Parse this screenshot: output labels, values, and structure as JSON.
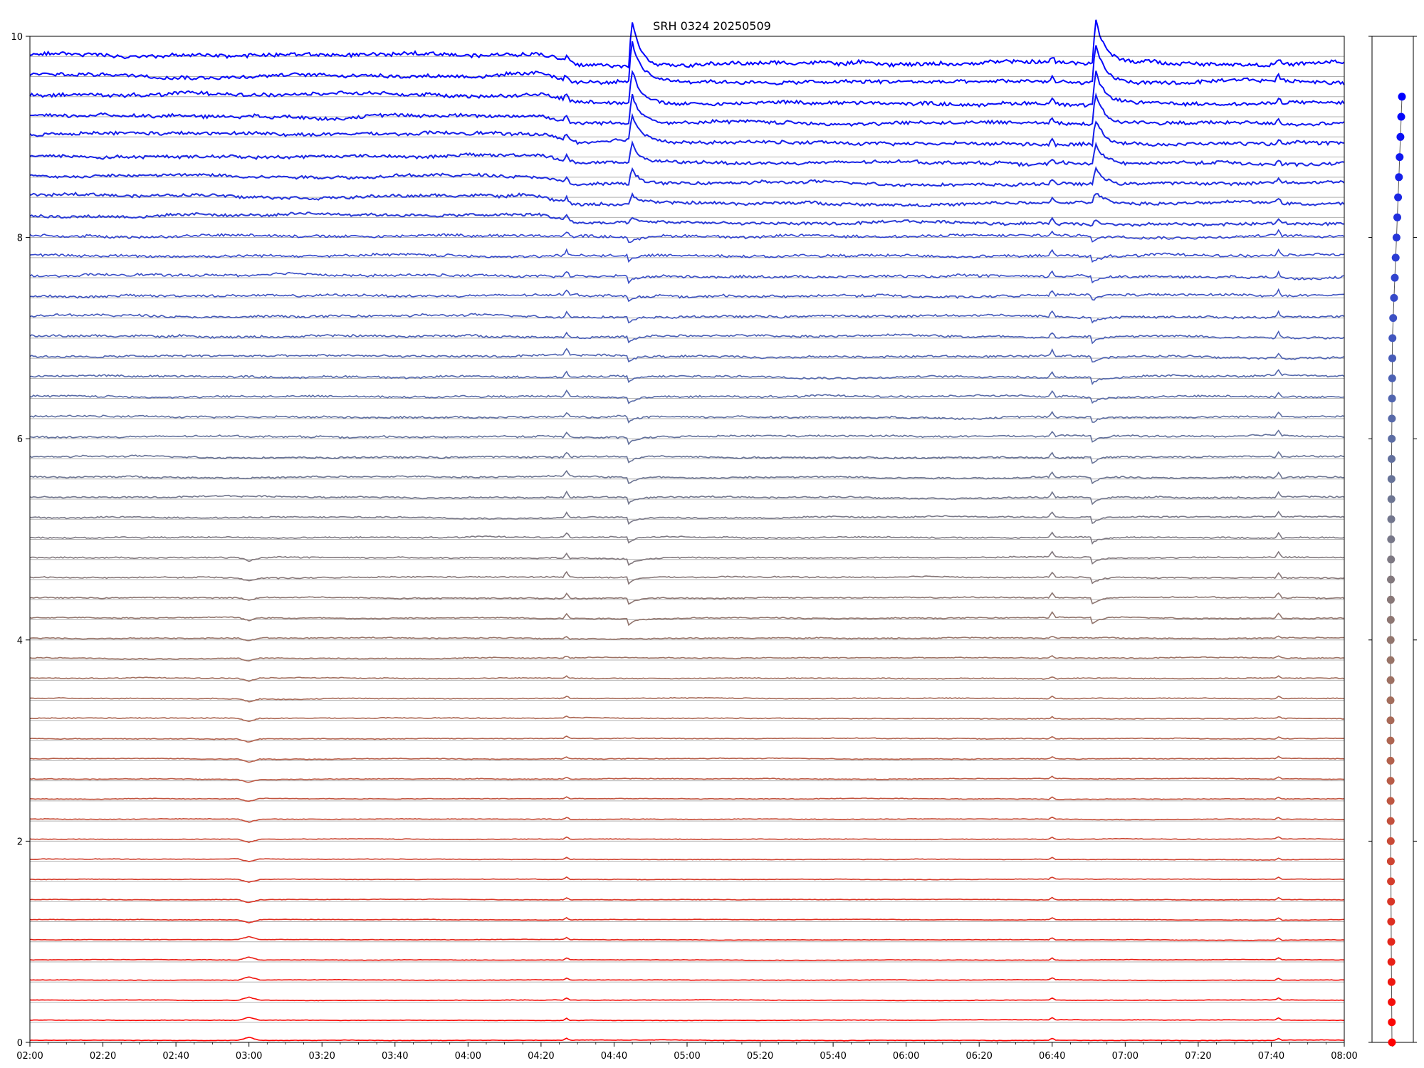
{
  "chart_data": {
    "type": "line",
    "title": "SRH 0324 20250509",
    "xlabel": "",
    "ylabel": "",
    "xlim": [
      "02:00",
      "08:00"
    ],
    "ylim": [
      0,
      10
    ],
    "x_ticks": [
      "02:00",
      "02:20",
      "02:40",
      "03:00",
      "03:20",
      "03:40",
      "04:00",
      "04:20",
      "04:40",
      "05:00",
      "05:20",
      "05:40",
      "06:00",
      "06:20",
      "06:40",
      "07:00",
      "07:20",
      "07:40",
      "08:00"
    ],
    "y_ticks": [
      "0",
      "2",
      "4",
      "6",
      "8",
      "10"
    ],
    "series_count": 50,
    "series_spacing": 0.2,
    "series_color_start": "#ff0000",
    "series_color_end": "#0000ff",
    "events": [
      {
        "time": "03:00",
        "label": "bump"
      },
      {
        "time": "04:27",
        "label": "spike"
      },
      {
        "time": "04:44",
        "label": "burst"
      },
      {
        "time": "06:40",
        "label": "spike"
      },
      {
        "time": "06:51",
        "label": "burst"
      },
      {
        "time": "07:42",
        "label": "spike"
      }
    ],
    "side_panel": {
      "type": "scatter",
      "marker_count": 48,
      "y_start": 0,
      "y_step": 0.2
    }
  }
}
